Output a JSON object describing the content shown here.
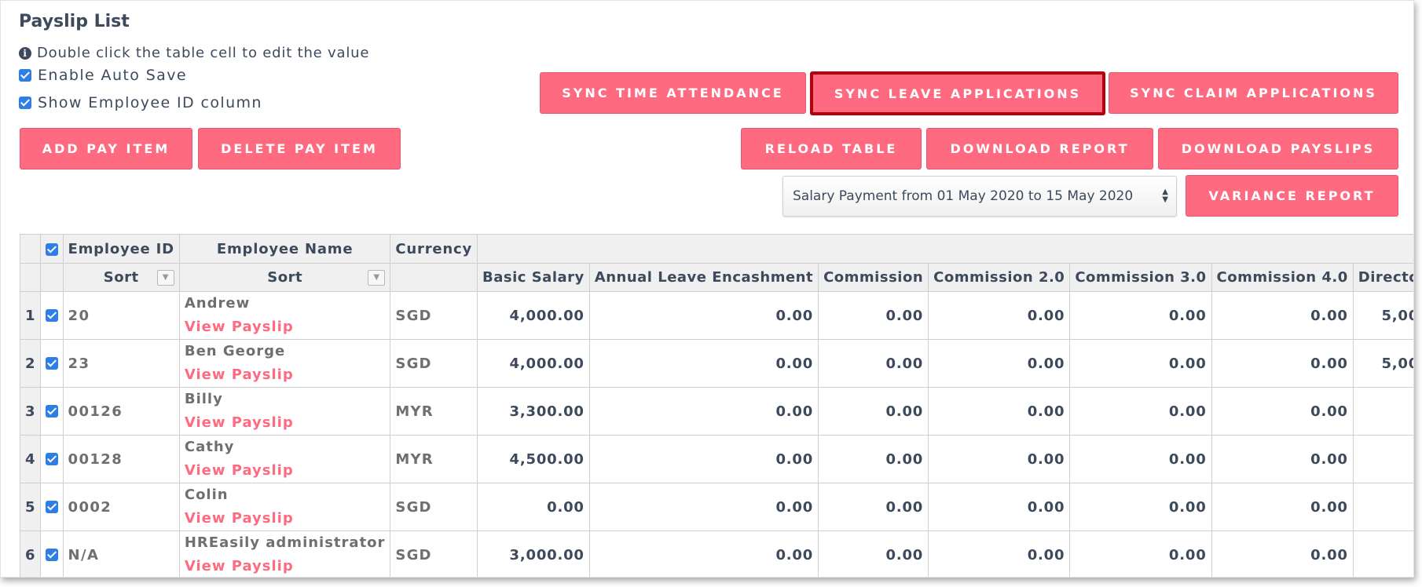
{
  "page": {
    "title": "Payslip List",
    "info_text": "Double click the table cell to edit the value",
    "enable_auto_save": "Enable Auto Save",
    "show_employee_id": "Show Employee ID column"
  },
  "buttons": {
    "add_pay_item": "ADD PAY ITEM",
    "delete_pay_item": "DELETE PAY ITEM",
    "sync_time_attendance": "SYNC TIME ATTENDANCE",
    "sync_leave_applications": "SYNC LEAVE APPLICATIONS",
    "sync_claim_applications": "SYNC CLAIM APPLICATIONS",
    "reload_table": "RELOAD TABLE",
    "download_report": "DOWNLOAD REPORT",
    "download_payslips": "DOWNLOAD PAYSLIPS",
    "variance_report": "VARIANCE REPORT"
  },
  "period_select": {
    "value": "Salary Payment from 01 May 2020 to 15 May 2020"
  },
  "table": {
    "headers": {
      "employee_id": "Employee ID",
      "employee_name": "Employee Name",
      "currency": "Currency",
      "sort": "Sort",
      "basic_salary": "Basic Salary",
      "annual_leave_encashment": "Annual Leave Encashment",
      "commission": "Commission",
      "commission_2": "Commission 2.0",
      "commission_3": "Commission 3.0",
      "commission_4": "Commission 4.0",
      "director": "Directo"
    },
    "link_label": "View Payslip",
    "rows": [
      {
        "num": "1",
        "id": "20",
        "name": "Andrew",
        "currency": "SGD",
        "basic": "4,000.00",
        "ale": "0.00",
        "c1": "0.00",
        "c2": "0.00",
        "c3": "0.00",
        "c4": "0.00",
        "dir": "5,00"
      },
      {
        "num": "2",
        "id": "23",
        "name": "Ben George",
        "currency": "SGD",
        "basic": "4,000.00",
        "ale": "0.00",
        "c1": "0.00",
        "c2": "0.00",
        "c3": "0.00",
        "c4": "0.00",
        "dir": "5,00"
      },
      {
        "num": "3",
        "id": "00126",
        "name": "Billy",
        "currency": "MYR",
        "basic": "3,300.00",
        "ale": "0.00",
        "c1": "0.00",
        "c2": "0.00",
        "c3": "0.00",
        "c4": "0.00",
        "dir": ""
      },
      {
        "num": "4",
        "id": "00128",
        "name": "Cathy",
        "currency": "MYR",
        "basic": "4,500.00",
        "ale": "0.00",
        "c1": "0.00",
        "c2": "0.00",
        "c3": "0.00",
        "c4": "0.00",
        "dir": ""
      },
      {
        "num": "5",
        "id": "0002",
        "name": "Colin",
        "currency": "SGD",
        "basic": "0.00",
        "ale": "0.00",
        "c1": "0.00",
        "c2": "0.00",
        "c3": "0.00",
        "c4": "0.00",
        "dir": ""
      },
      {
        "num": "6",
        "id": "N/A",
        "name": "HREasily administrator",
        "currency": "SGD",
        "basic": "3,000.00",
        "ale": "0.00",
        "c1": "0.00",
        "c2": "0.00",
        "c3": "0.00",
        "c4": "0.00",
        "dir": ""
      }
    ]
  },
  "colors": {
    "accent": "#fe6b81",
    "highlight_border": "#b3000a",
    "checkbox": "#2f7ee6",
    "text": "#3d4a5c"
  }
}
